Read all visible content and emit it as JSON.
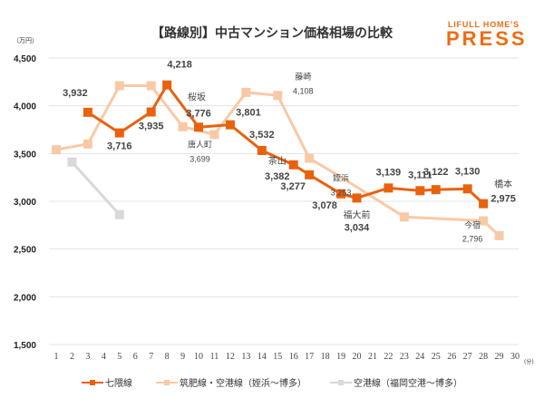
{
  "chart_data": {
    "type": "line",
    "title": "【路線別】中古マンション価格相場の比較",
    "ylabel": "（万円）",
    "xlabel": "（分）",
    "ylim": [
      1500,
      4500
    ],
    "yticks": [
      1500,
      2000,
      2500,
      3000,
      3500,
      4000,
      4500
    ],
    "ytick_labels": [
      "1,500",
      "2,000",
      "2,500",
      "3,000",
      "3,500",
      "4,000",
      "4,500"
    ],
    "xlim": [
      1,
      30
    ],
    "xticks": [
      1,
      2,
      3,
      4,
      5,
      6,
      7,
      8,
      9,
      10,
      11,
      12,
      13,
      14,
      15,
      16,
      17,
      18,
      19,
      20,
      21,
      22,
      23,
      24,
      25,
      26,
      27,
      28,
      29,
      30
    ],
    "grid": true,
    "legend_position": "bottom",
    "series": [
      {
        "name": "七隈線",
        "color": "#e8620e",
        "points": [
          {
            "x": 3,
            "y": 3932,
            "label": "3,932"
          },
          {
            "x": 5,
            "y": 3716,
            "label": "3,716"
          },
          {
            "x": 7,
            "y": 3935,
            "label": "3,935"
          },
          {
            "x": 8,
            "y": 4218,
            "label": "4,218"
          },
          {
            "x": 10,
            "y": 3776,
            "label": "3,776",
            "station": "桜坂"
          },
          {
            "x": 12,
            "y": 3801,
            "label": "3,801"
          },
          {
            "x": 14,
            "y": 3532,
            "label": "3,532"
          },
          {
            "x": 16,
            "y": 3382,
            "label": "3,382",
            "station": "茶山"
          },
          {
            "x": 17,
            "y": 3277,
            "label": "3,277"
          },
          {
            "x": 19,
            "y": 3078,
            "label": "3,078"
          },
          {
            "x": 20,
            "y": 3034,
            "label": "3,034",
            "station": "福大前"
          },
          {
            "x": 22,
            "y": 3139,
            "label": "3,139"
          },
          {
            "x": 24,
            "y": 3111,
            "label": "3,111"
          },
          {
            "x": 25,
            "y": 3122,
            "label": "3,122"
          },
          {
            "x": 27,
            "y": 3130,
            "label": "3,130"
          },
          {
            "x": 28,
            "y": 2975,
            "label": "2,975",
            "station": "橋本"
          }
        ]
      },
      {
        "name": "筑肥線・空港線（姪浜～博多）",
        "color": "#f9c9a6",
        "points": [
          {
            "x": 1,
            "y": 3540
          },
          {
            "x": 3,
            "y": 3600
          },
          {
            "x": 5,
            "y": 4210
          },
          {
            "x": 7,
            "y": 4210
          },
          {
            "x": 9,
            "y": 3780
          },
          {
            "x": 11,
            "y": 3699,
            "label": "3,699",
            "station": "唐人町"
          },
          {
            "x": 13,
            "y": 4140
          },
          {
            "x": 15,
            "y": 4108,
            "label": "4,108",
            "station": "藤崎"
          },
          {
            "x": 17,
            "y": 3450
          },
          {
            "x": 19,
            "y": 3253,
            "label": "3,253",
            "station": "姪浜",
            "marker": false
          },
          {
            "x": 23,
            "y": 2836
          },
          {
            "x": 28,
            "y": 2796,
            "label": "2,796",
            "station": "今宿"
          },
          {
            "x": 29,
            "y": 2640
          }
        ]
      },
      {
        "name": "空港線（福岡空港～博多）",
        "color": "#d9d9d9",
        "points": [
          {
            "x": 2,
            "y": 3410
          },
          {
            "x": 5,
            "y": 2860
          }
        ]
      }
    ]
  },
  "header": {
    "title": "【路線別】中古マンション価格相場の比較",
    "logo_top": "LIFULL HOME'S",
    "logo_main": "PRESS",
    "y_unit": "（万円）",
    "x_unit": "(分)"
  },
  "legend": [
    {
      "label": "七隈線",
      "color": "#e8620e"
    },
    {
      "label": "筑肥線・空港線（姪浜～博多）",
      "color": "#f9c9a6"
    },
    {
      "label": "空港線（福岡空港～博多）",
      "color": "#d9d9d9"
    }
  ]
}
